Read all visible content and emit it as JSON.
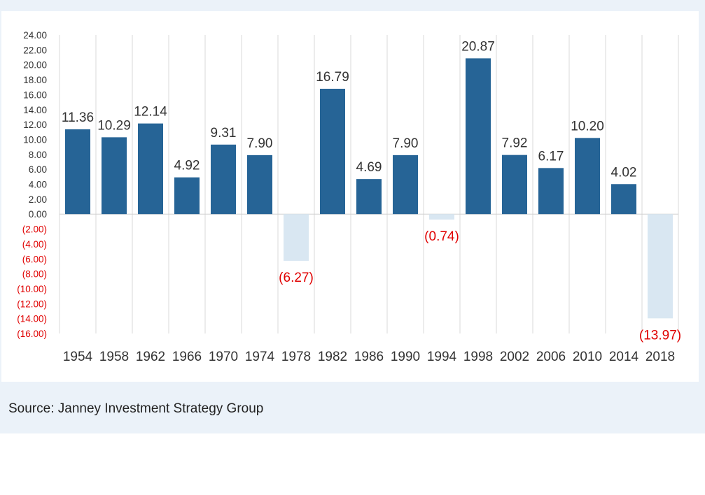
{
  "chart_data": {
    "type": "bar",
    "title": "",
    "xlabel": "",
    "ylabel": "",
    "categories": [
      "1954",
      "1958",
      "1962",
      "1966",
      "1970",
      "1974",
      "1978",
      "1982",
      "1986",
      "1990",
      "1994",
      "1998",
      "2002",
      "2006",
      "2010",
      "2014",
      "2018"
    ],
    "values": [
      11.36,
      10.29,
      12.14,
      4.92,
      9.31,
      7.9,
      -6.27,
      16.79,
      4.69,
      7.9,
      -0.74,
      20.87,
      7.92,
      6.17,
      10.2,
      4.02,
      -13.97
    ],
    "data_labels": [
      "11.36",
      "10.29",
      "12.14",
      "4.92",
      "9.31",
      "7.90",
      "(6.27)",
      "16.79",
      "4.69",
      "7.90",
      "(0.74)",
      "20.87",
      "7.92",
      "6.17",
      "10.20",
      "4.02",
      "(13.97)"
    ],
    "ylim": [
      -16,
      24
    ],
    "yticks": [
      24,
      22,
      20,
      18,
      16,
      14,
      12,
      10,
      8,
      6,
      4,
      2,
      0,
      -2,
      -4,
      -6,
      -8,
      -10,
      -12,
      -14,
      -16
    ],
    "ytick_labels": [
      "24.00",
      "22.00",
      "20.00",
      "18.00",
      "16.00",
      "14.00",
      "12.00",
      "10.00",
      "8.00",
      "6.00",
      "4.00",
      "2.00",
      "0.00",
      "(2.00)",
      "(4.00)",
      "(6.00)",
      "(8.00)",
      "(10.00)",
      "(12.00)",
      "(14.00)",
      "(16.00)"
    ],
    "grid": true,
    "colors": {
      "positive_bar": "#266496",
      "negative_bar": "#d9e7f2",
      "negative_text": "#e00000",
      "positive_text": "#333333",
      "gridline": "#d9d9d9",
      "zero_line": "#d0d0d0"
    }
  },
  "footer": {
    "source": "Source: Janney Investment Strategy Group"
  }
}
